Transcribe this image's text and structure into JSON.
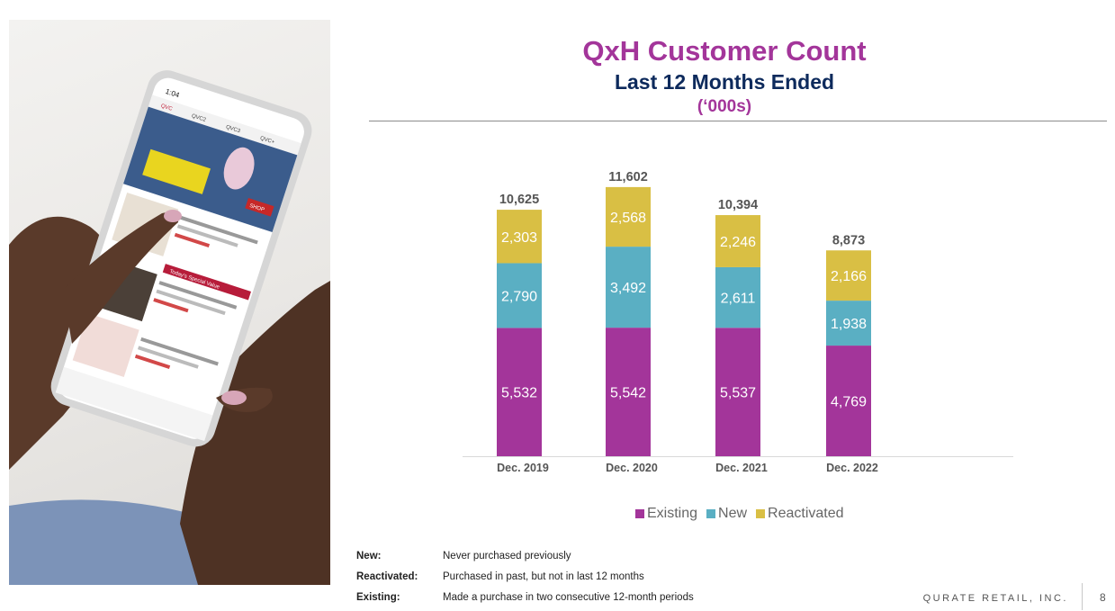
{
  "title": "QxH Customer Count",
  "subtitle": "Last 12 Months Ended",
  "units": "(‘000s)",
  "photo": {
    "phone_time": "1:04",
    "app_tabs": [
      "QVC",
      "QVC2",
      "QVC3",
      "QVC+"
    ],
    "shop_label": "SHOP",
    "special_value_label": "Today's Special Value"
  },
  "chart_data": {
    "type": "bar",
    "stacked": true,
    "categories": [
      "Dec. 2019",
      "Dec. 2020",
      "Dec. 2021",
      "Dec. 2022"
    ],
    "series": [
      {
        "name": "Existing",
        "color": "#a3359a",
        "values": [
          5532,
          5542,
          5537,
          4769
        ]
      },
      {
        "name": "New",
        "color": "#5aafc3",
        "values": [
          2790,
          3492,
          2611,
          1938
        ]
      },
      {
        "name": "Reactivated",
        "color": "#d9bf44",
        "values": [
          2303,
          2568,
          2246,
          2166
        ]
      }
    ],
    "totals": [
      10625,
      11602,
      10394,
      8873
    ],
    "legend_position": "bottom",
    "grid": false
  },
  "definitions": [
    {
      "term": "New:",
      "text": "Never purchased previously"
    },
    {
      "term": "Reactivated:",
      "text": "Purchased in past, but not in last 12 months"
    },
    {
      "term": "Existing:",
      "text": "Made a purchase in two consecutive 12-month periods"
    }
  ],
  "footer": {
    "company": "QURATE RETAIL, INC.",
    "page": "8"
  }
}
